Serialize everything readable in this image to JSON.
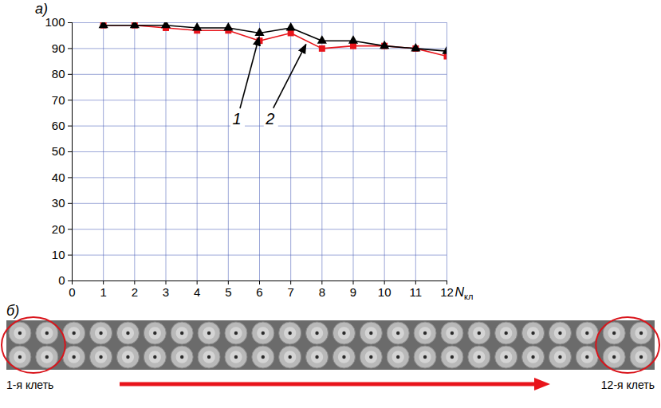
{
  "chart_data": {
    "type": "line",
    "title": "а)",
    "x_label": "N",
    "x_label_subscript": "кл",
    "x": [
      1,
      2,
      3,
      4,
      5,
      6,
      7,
      8,
      9,
      10,
      11,
      12
    ],
    "series": [
      {
        "name": "1",
        "color": "#000000",
        "marker": "triangle",
        "values": [
          99,
          99,
          99,
          98,
          98,
          96,
          98,
          93,
          93,
          91,
          90,
          89
        ]
      },
      {
        "name": "2",
        "color": "#e8141b",
        "marker": "square",
        "values": [
          99,
          99,
          98,
          97,
          97,
          93,
          96,
          90,
          91,
          91,
          90,
          87
        ]
      }
    ],
    "xlim": [
      0,
      12
    ],
    "xticks": [
      0,
      1,
      2,
      3,
      4,
      5,
      6,
      7,
      8,
      9,
      10,
      11,
      12
    ],
    "ylim": [
      0,
      100
    ],
    "yticks": [
      0,
      10,
      20,
      30,
      40,
      50,
      60,
      70,
      80,
      90,
      100
    ],
    "grid": true
  },
  "figure_b": {
    "title": "б)",
    "start_label": "1-я клеть",
    "end_label": "12-я клеть"
  }
}
